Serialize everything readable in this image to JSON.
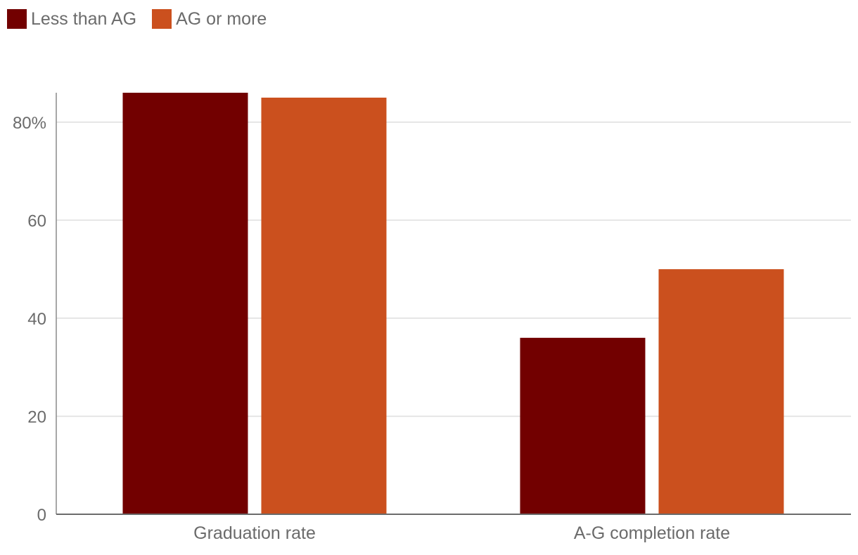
{
  "chart_data": {
    "type": "bar",
    "title": "",
    "xlabel": "",
    "ylabel": "",
    "categories": [
      "Graduation rate",
      "A-G completion rate"
    ],
    "series": [
      {
        "name": "Less than AG",
        "color": "#720000",
        "values": [
          86,
          36
        ]
      },
      {
        "name": "AG or more",
        "color": "#cb501e",
        "values": [
          85,
          50
        ]
      }
    ],
    "ylim": [
      0,
      86
    ],
    "yticks": [
      0,
      20,
      40,
      60,
      80
    ],
    "ytick_labels": [
      "0",
      "20",
      "40",
      "60",
      "80%"
    ],
    "grid": true,
    "legend": "top-left"
  }
}
